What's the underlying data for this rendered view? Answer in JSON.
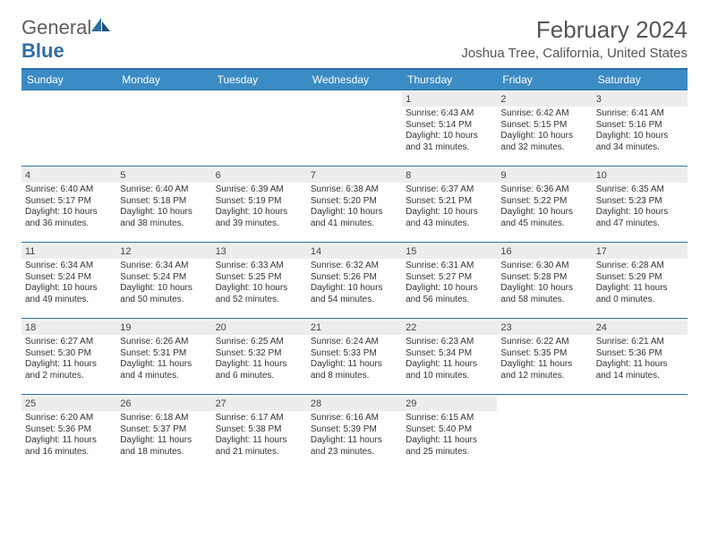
{
  "brand": {
    "name_a": "General",
    "name_b": "Blue"
  },
  "title": "February 2024",
  "location": "Joshua Tree, California, United States",
  "colors": {
    "header_bar": "#3b8bc4",
    "rule": "#2c6fa6",
    "daynum_bg": "#eceeee",
    "text": "#333333",
    "subtext": "#555555"
  },
  "layout": {
    "first_weekday_index": 4,
    "days_in_month": 29,
    "weeks": 5
  },
  "dayhead": [
    "Sunday",
    "Monday",
    "Tuesday",
    "Wednesday",
    "Thursday",
    "Friday",
    "Saturday"
  ],
  "days": {
    "1": {
      "sunrise": "6:43 AM",
      "sunset": "5:14 PM",
      "dl_a": "Daylight: 10 hours",
      "dl_b": "and 31 minutes."
    },
    "2": {
      "sunrise": "6:42 AM",
      "sunset": "5:15 PM",
      "dl_a": "Daylight: 10 hours",
      "dl_b": "and 32 minutes."
    },
    "3": {
      "sunrise": "6:41 AM",
      "sunset": "5:16 PM",
      "dl_a": "Daylight: 10 hours",
      "dl_b": "and 34 minutes."
    },
    "4": {
      "sunrise": "6:40 AM",
      "sunset": "5:17 PM",
      "dl_a": "Daylight: 10 hours",
      "dl_b": "and 36 minutes."
    },
    "5": {
      "sunrise": "6:40 AM",
      "sunset": "5:18 PM",
      "dl_a": "Daylight: 10 hours",
      "dl_b": "and 38 minutes."
    },
    "6": {
      "sunrise": "6:39 AM",
      "sunset": "5:19 PM",
      "dl_a": "Daylight: 10 hours",
      "dl_b": "and 39 minutes."
    },
    "7": {
      "sunrise": "6:38 AM",
      "sunset": "5:20 PM",
      "dl_a": "Daylight: 10 hours",
      "dl_b": "and 41 minutes."
    },
    "8": {
      "sunrise": "6:37 AM",
      "sunset": "5:21 PM",
      "dl_a": "Daylight: 10 hours",
      "dl_b": "and 43 minutes."
    },
    "9": {
      "sunrise": "6:36 AM",
      "sunset": "5:22 PM",
      "dl_a": "Daylight: 10 hours",
      "dl_b": "and 45 minutes."
    },
    "10": {
      "sunrise": "6:35 AM",
      "sunset": "5:23 PM",
      "dl_a": "Daylight: 10 hours",
      "dl_b": "and 47 minutes."
    },
    "11": {
      "sunrise": "6:34 AM",
      "sunset": "5:24 PM",
      "dl_a": "Daylight: 10 hours",
      "dl_b": "and 49 minutes."
    },
    "12": {
      "sunrise": "6:34 AM",
      "sunset": "5:24 PM",
      "dl_a": "Daylight: 10 hours",
      "dl_b": "and 50 minutes."
    },
    "13": {
      "sunrise": "6:33 AM",
      "sunset": "5:25 PM",
      "dl_a": "Daylight: 10 hours",
      "dl_b": "and 52 minutes."
    },
    "14": {
      "sunrise": "6:32 AM",
      "sunset": "5:26 PM",
      "dl_a": "Daylight: 10 hours",
      "dl_b": "and 54 minutes."
    },
    "15": {
      "sunrise": "6:31 AM",
      "sunset": "5:27 PM",
      "dl_a": "Daylight: 10 hours",
      "dl_b": "and 56 minutes."
    },
    "16": {
      "sunrise": "6:30 AM",
      "sunset": "5:28 PM",
      "dl_a": "Daylight: 10 hours",
      "dl_b": "and 58 minutes."
    },
    "17": {
      "sunrise": "6:28 AM",
      "sunset": "5:29 PM",
      "dl_a": "Daylight: 11 hours",
      "dl_b": "and 0 minutes."
    },
    "18": {
      "sunrise": "6:27 AM",
      "sunset": "5:30 PM",
      "dl_a": "Daylight: 11 hours",
      "dl_b": "and 2 minutes."
    },
    "19": {
      "sunrise": "6:26 AM",
      "sunset": "5:31 PM",
      "dl_a": "Daylight: 11 hours",
      "dl_b": "and 4 minutes."
    },
    "20": {
      "sunrise": "6:25 AM",
      "sunset": "5:32 PM",
      "dl_a": "Daylight: 11 hours",
      "dl_b": "and 6 minutes."
    },
    "21": {
      "sunrise": "6:24 AM",
      "sunset": "5:33 PM",
      "dl_a": "Daylight: 11 hours",
      "dl_b": "and 8 minutes."
    },
    "22": {
      "sunrise": "6:23 AM",
      "sunset": "5:34 PM",
      "dl_a": "Daylight: 11 hours",
      "dl_b": "and 10 minutes."
    },
    "23": {
      "sunrise": "6:22 AM",
      "sunset": "5:35 PM",
      "dl_a": "Daylight: 11 hours",
      "dl_b": "and 12 minutes."
    },
    "24": {
      "sunrise": "6:21 AM",
      "sunset": "5:36 PM",
      "dl_a": "Daylight: 11 hours",
      "dl_b": "and 14 minutes."
    },
    "25": {
      "sunrise": "6:20 AM",
      "sunset": "5:36 PM",
      "dl_a": "Daylight: 11 hours",
      "dl_b": "and 16 minutes."
    },
    "26": {
      "sunrise": "6:18 AM",
      "sunset": "5:37 PM",
      "dl_a": "Daylight: 11 hours",
      "dl_b": "and 18 minutes."
    },
    "27": {
      "sunrise": "6:17 AM",
      "sunset": "5:38 PM",
      "dl_a": "Daylight: 11 hours",
      "dl_b": "and 21 minutes."
    },
    "28": {
      "sunrise": "6:16 AM",
      "sunset": "5:39 PM",
      "dl_a": "Daylight: 11 hours",
      "dl_b": "and 23 minutes."
    },
    "29": {
      "sunrise": "6:15 AM",
      "sunset": "5:40 PM",
      "dl_a": "Daylight: 11 hours",
      "dl_b": "and 25 minutes."
    }
  },
  "labels": {
    "sunrise_prefix": "Sunrise: ",
    "sunset_prefix": "Sunset: "
  }
}
